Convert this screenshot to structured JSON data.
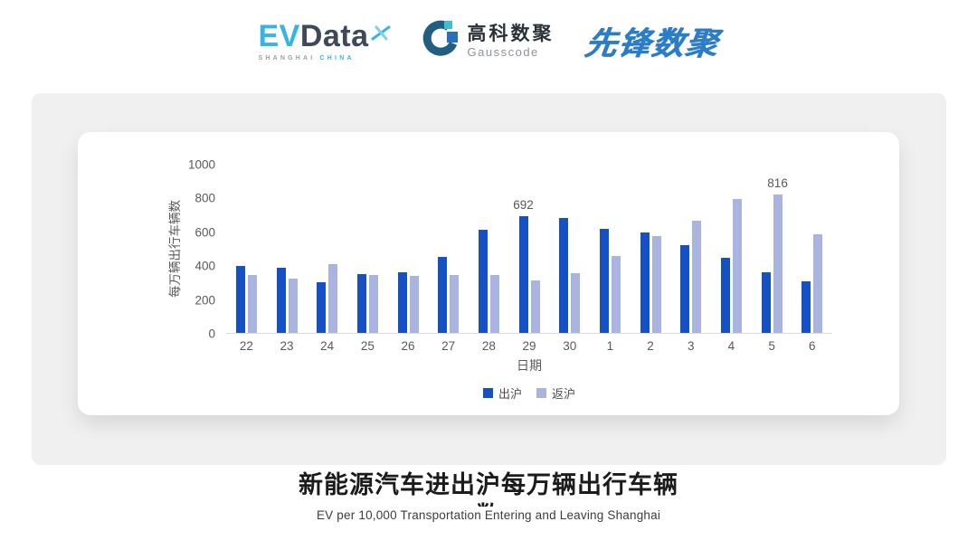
{
  "header": {
    "evdata": {
      "ev": "EV",
      "data": "Data",
      "sub_left": "SHANGHAI",
      "sub_right": "CHINA"
    },
    "gausscode": {
      "cn": "高科数聚",
      "en": "Gausscode"
    },
    "xianfeng": {
      "text": "先锋数聚"
    }
  },
  "icons": {
    "evdata_spark": "x-spark-icon",
    "gausscode_mark": "g-ring-icon"
  },
  "colors": {
    "panel_bg": "#f0f0f1",
    "card_bg": "#ffffff",
    "axis_text": "#595959",
    "evdata_blue": "#35b5e5",
    "evdata_dark": "#3e4a5a",
    "gauss_arc": "#215e80",
    "gauss_teal": "#3fc0cf",
    "gauss_blue": "#2a6fbb",
    "xianfeng_blue": "#2b7cc9",
    "series_out": "#1551c5",
    "series_back": "#aab4e0"
  },
  "chart_data": {
    "type": "bar",
    "title": "",
    "categories": [
      "22",
      "23",
      "24",
      "25",
      "26",
      "27",
      "28",
      "29",
      "30",
      "1",
      "2",
      "3",
      "4",
      "5",
      "6"
    ],
    "series": [
      {
        "name": "出沪",
        "color": "#1551c5",
        "values": [
          395,
          385,
          300,
          350,
          360,
          450,
          610,
          692,
          680,
          615,
          595,
          520,
          445,
          360,
          305
        ]
      },
      {
        "name": "返沪",
        "color": "#aab4e0",
        "values": [
          345,
          320,
          405,
          340,
          335,
          345,
          340,
          310,
          355,
          455,
          570,
          665,
          790,
          816,
          585
        ]
      }
    ],
    "data_labels": [
      {
        "series": 0,
        "index": 7,
        "text": "692"
      },
      {
        "series": 1,
        "index": 13,
        "text": "816"
      }
    ],
    "xlabel": "日期",
    "ylabel": "每万辆出行车辆数",
    "yticks": [
      0,
      200,
      400,
      600,
      800,
      1000
    ],
    "ylim": [
      0,
      1000
    ],
    "grid": false,
    "legend_position": "bottom"
  },
  "footer": {
    "title": "新能源汽车进出沪每万辆出行车辆数",
    "subtitle": "EV per 10,000 Transportation Entering and Leaving Shanghai"
  }
}
